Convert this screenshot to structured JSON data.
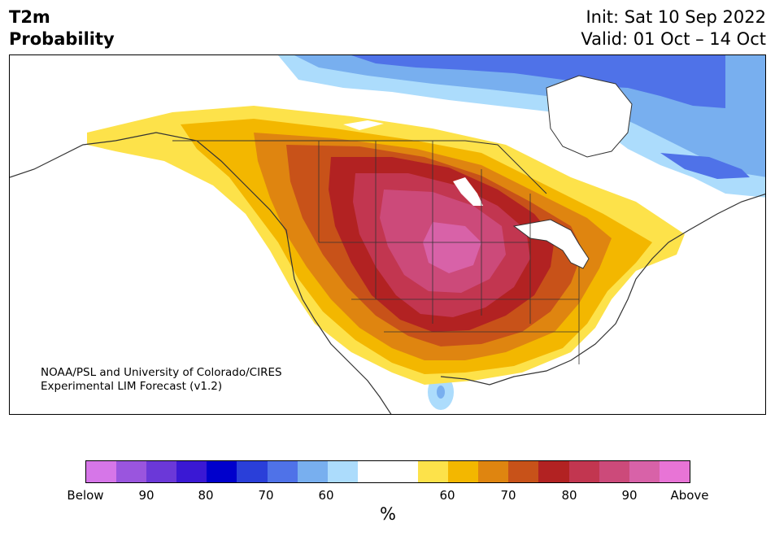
{
  "header": {
    "title_line1": "T2m",
    "title_line2": "Probability",
    "init": "Init: Sat 10 Sep 2022",
    "valid": "Valid: 01 Oct – 14 Oct"
  },
  "credit": {
    "line1": "NOAA/PSL and University of Colorado/CIRES",
    "line2": "Experimental LIM Forecast (v1.2)"
  },
  "colorbar": {
    "colors": [
      "#d676e8",
      "#9a55de",
      "#6b38d8",
      "#3a18d4",
      "#0000cc",
      "#2a3fd9",
      "#4f72e8",
      "#78afef",
      "#acdcfc",
      "#ffffff",
      "#ffffff",
      "#fde24a",
      "#f3b700",
      "#df8510",
      "#c85219",
      "#b22222",
      "#c23650",
      "#cc4a7a",
      "#d862a8",
      "#e874d6"
    ],
    "tick_labels": [
      "Below",
      "90",
      "80",
      "70",
      "60",
      "60",
      "70",
      "80",
      "90",
      "Above"
    ],
    "unit": "%"
  },
  "map_palette": {
    "cold_light": "#acdcfc",
    "cold_mid": "#78afef",
    "cold_dark": "#4f72e8",
    "warm_1": "#fde24a",
    "warm_2": "#f3b700",
    "warm_3": "#df8510",
    "warm_4": "#c85219",
    "warm_5": "#b22222",
    "warm_6": "#c23650",
    "warm_7": "#cc4a7a",
    "warm_8": "#d862a8"
  }
}
